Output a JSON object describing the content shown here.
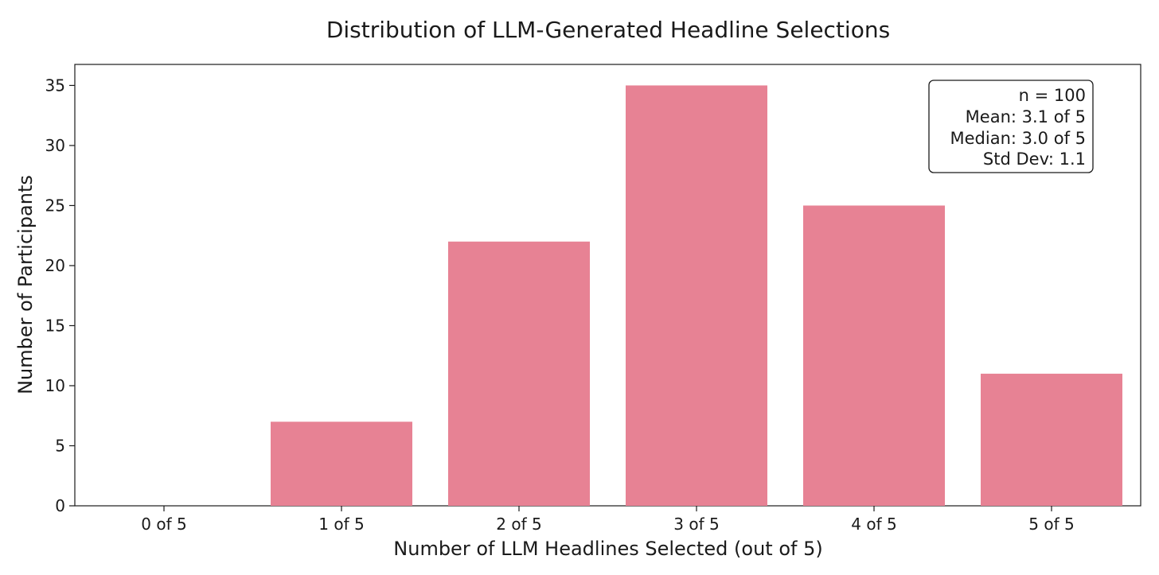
{
  "chart_data": {
    "type": "bar",
    "title": "Distribution of LLM-Generated Headline Selections",
    "xlabel": "Number of LLM Headlines Selected (out of 5)",
    "ylabel": "Number of Participants",
    "categories": [
      "0 of 5",
      "1 of 5",
      "2 of 5",
      "3 of 5",
      "4 of 5",
      "5 of 5"
    ],
    "values": [
      0,
      7,
      22,
      35,
      25,
      11
    ],
    "ylim": [
      0,
      36.75
    ],
    "yticks": [
      0,
      5,
      10,
      15,
      20,
      25,
      30,
      35
    ],
    "bar_color": "#e78294",
    "grid": false,
    "stats_box": {
      "placement": "top-right",
      "lines": [
        "n = 100",
        "Mean: 3.1 of 5",
        "Median: 3.0 of 5",
        "Std Dev: 1.1"
      ]
    }
  }
}
